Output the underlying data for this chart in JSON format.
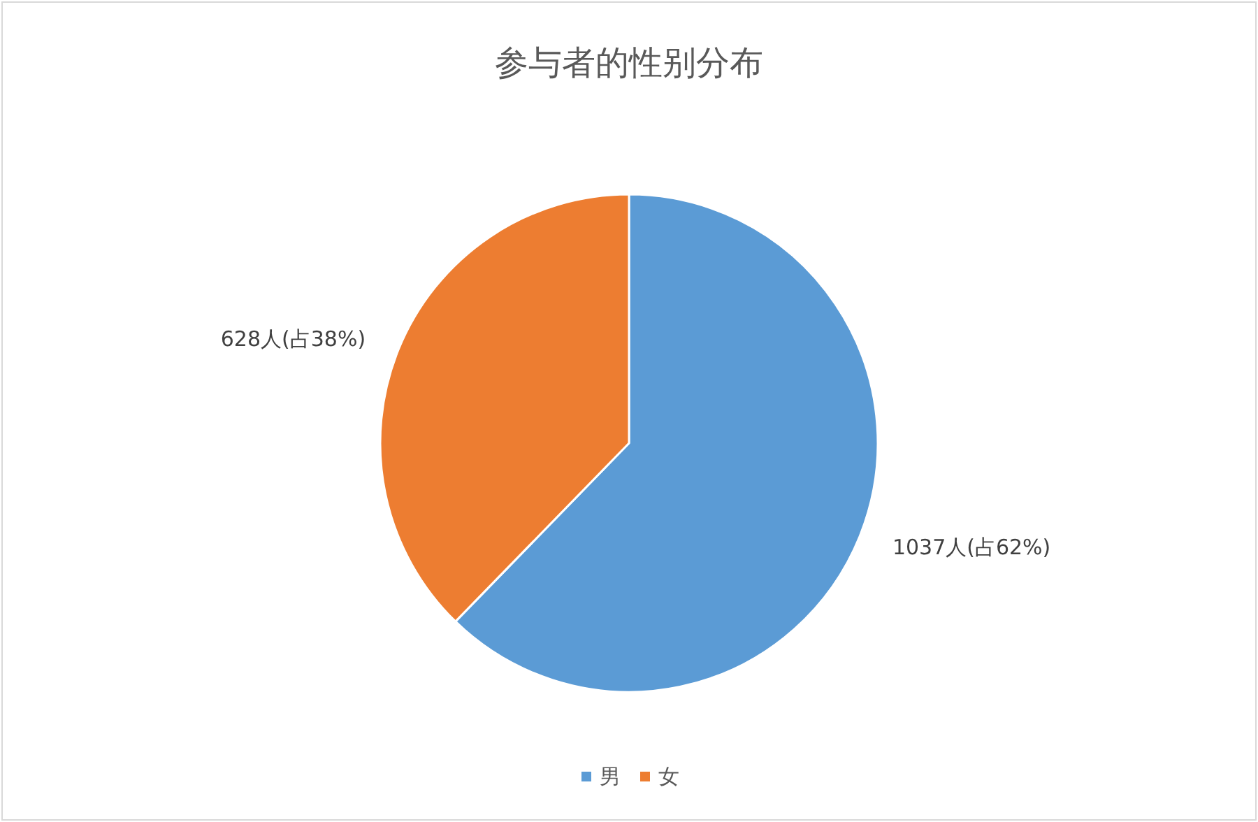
{
  "chart_data": {
    "type": "pie",
    "title": "参与者的性别分布",
    "categories": [
      "男",
      "女"
    ],
    "values": [
      1037,
      628
    ],
    "colors": [
      "#5b9bd5",
      "#ed7d31"
    ],
    "value_labels": [
      "1037人(占62%)",
      "628人(占38%)"
    ],
    "legend": "bottom"
  }
}
